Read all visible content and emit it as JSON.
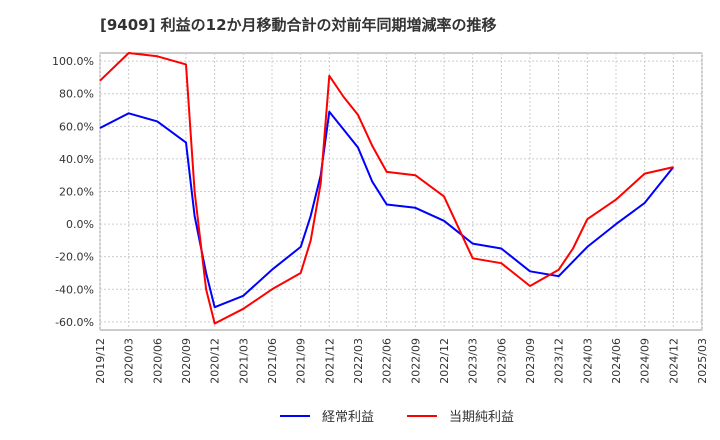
{
  "chart_data": {
    "type": "line",
    "title": "[9409]  利益の12か月移動合計の対前年同期増減率の推移",
    "xlabel": "",
    "ylabel": "",
    "ylim": [
      -65,
      105
    ],
    "yticks": [
      100,
      80,
      60,
      40,
      20,
      0,
      -20,
      -40,
      -60
    ],
    "ytick_labels": [
      "100.0%",
      "80.0%",
      "60.0%",
      "40.0%",
      "20.0%",
      "0.0%",
      "-20.0%",
      "-40.0%",
      "-60.0%"
    ],
    "categories": [
      "2019/12",
      "2020/03",
      "2020/06",
      "2020/09",
      "2020/12",
      "2021/03",
      "2021/06",
      "2021/09",
      "2021/12",
      "2022/03",
      "2022/06",
      "2022/09",
      "2022/12",
      "2023/03",
      "2023/06",
      "2023/09",
      "2023/12",
      "2024/03",
      "2024/06",
      "2024/09",
      "2024/12",
      "2025/03"
    ],
    "grid": true,
    "legend_position": "bottom",
    "series": [
      {
        "name": "経常利益",
        "color": "#0000ff",
        "points": [
          [
            0,
            59
          ],
          [
            1,
            68
          ],
          [
            2,
            63
          ],
          [
            3,
            50
          ],
          [
            3.3,
            5
          ],
          [
            3.7,
            -30
          ],
          [
            4,
            -51
          ],
          [
            5,
            -44
          ],
          [
            6,
            -28
          ],
          [
            7,
            -14
          ],
          [
            7.35,
            5
          ],
          [
            7.7,
            30
          ],
          [
            8,
            69
          ],
          [
            9,
            47
          ],
          [
            9.5,
            26
          ],
          [
            10,
            12
          ],
          [
            11,
            10
          ],
          [
            12,
            2
          ],
          [
            12.5,
            -5
          ],
          [
            13,
            -12
          ],
          [
            14,
            -15
          ],
          [
            15,
            -29
          ],
          [
            16,
            -32
          ],
          [
            17,
            -14
          ],
          [
            18,
            0
          ],
          [
            19,
            13
          ],
          [
            20,
            35
          ]
        ]
      },
      {
        "name": "当期純利益",
        "color": "#ff0000",
        "points": [
          [
            0,
            88
          ],
          [
            1,
            105
          ],
          [
            2,
            103
          ],
          [
            3,
            98
          ],
          [
            3.3,
            20
          ],
          [
            3.7,
            -40
          ],
          [
            4,
            -61
          ],
          [
            5,
            -52
          ],
          [
            6,
            -40
          ],
          [
            7,
            -30
          ],
          [
            7.35,
            -10
          ],
          [
            7.7,
            25
          ],
          [
            8,
            91
          ],
          [
            8.5,
            78
          ],
          [
            9,
            67
          ],
          [
            9.5,
            48
          ],
          [
            10,
            32
          ],
          [
            11,
            30
          ],
          [
            12,
            17
          ],
          [
            12.5,
            -2
          ],
          [
            13,
            -21
          ],
          [
            14,
            -24
          ],
          [
            15,
            -38
          ],
          [
            16,
            -28
          ],
          [
            16.5,
            -15
          ],
          [
            17,
            3
          ],
          [
            18,
            15
          ],
          [
            19,
            31
          ],
          [
            20,
            35
          ]
        ]
      }
    ]
  }
}
